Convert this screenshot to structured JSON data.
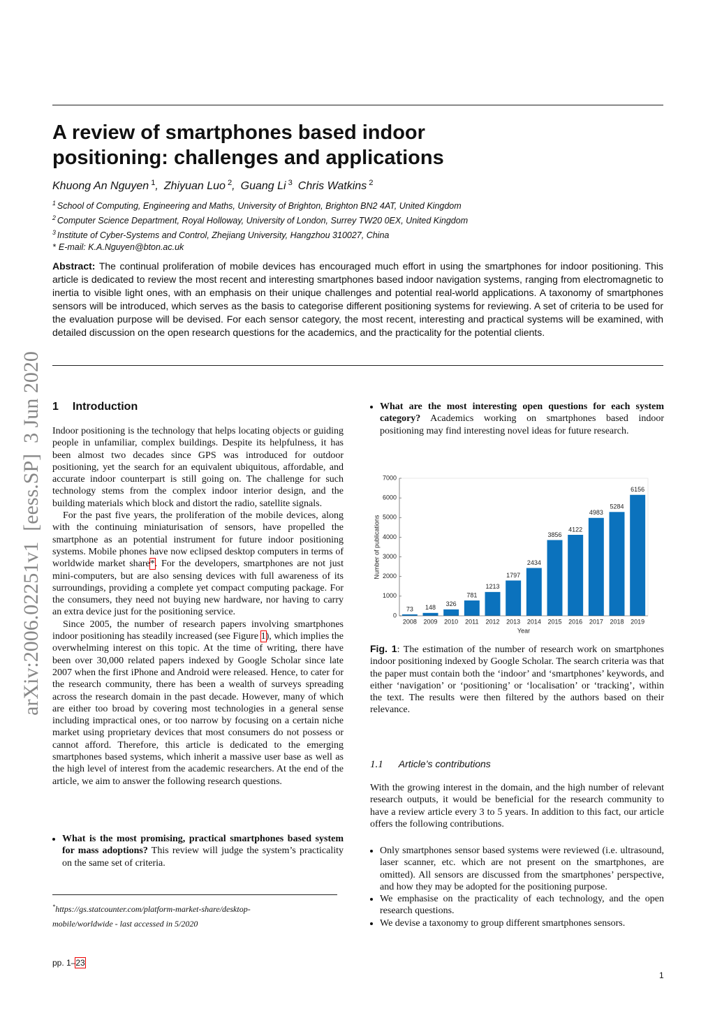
{
  "arxiv_stamp": "arXiv:2006.02251v1  [eess.SP]  3 Jun 2020",
  "header": {
    "title": "A review of smartphones based indoor positioning: challenges and applications",
    "authors": [
      {
        "name": "Khuong An Nguyen",
        "mark": "1",
        "separator": ","
      },
      {
        "name": "Zhiyuan Luo",
        "mark": "2",
        "separator": ","
      },
      {
        "name": "Guang Li",
        "mark": "3"
      },
      {
        "name": "Chris Watkins",
        "mark": "2"
      }
    ],
    "affiliations": [
      {
        "mark": "1",
        "text": "School of Computing, Engineering and Maths, University of Brighton, Brighton BN2 4AT, United Kingdom"
      },
      {
        "mark": "2",
        "text": "Computer Science Department, Royal Holloway, University of London, Surrey TW20 0EX, United Kingdom"
      },
      {
        "mark": "3",
        "text": "Institute of Cyber-Systems and Control, Zhejiang University, Hangzhou 310027, China"
      },
      {
        "mark": "*",
        "text": "E-mail: K.A.Nguyen@bton.ac.uk"
      }
    ]
  },
  "abstract": {
    "label": "Abstract:",
    "text": "The continual proliferation of mobile devices has encouraged much effort in using the smartphones for indoor positioning. This article is dedicated to review the most recent and interesting smartphones based indoor navigation systems, ranging from electromagnetic to inertia to visible light ones, with an emphasis on their unique challenges and potential real-world applications. A taxonomy of smartphones sensors will be introduced, which serves as the basis to categorise different positioning systems for reviewing. A set of criteria to be used for the evaluation purpose will be devised. For each sensor category, the most recent, interesting and practical systems will be examined, with detailed discussion on the open research questions for the academics, and the practicality for the potential clients."
  },
  "section": {
    "number": "1",
    "title": "Introduction",
    "paragraphs": [
      [
        "Indoor positioning is the technology that helps locating objects or guiding people in unfamiliar, complex buildings. Despite its helpfulness, it has been almost two decades since GPS was introduced for outdoor positioning, yet the search for an equivalent ubiquitous, affordable, and accurate indoor counterpart is still going on. The challenge for such technology stems from the complex indoor interior design, and the building materials which block and distort the radio, satellite signals."
      ],
      [
        "For the past five years, the proliferation of the mobile devices, along with the continuing miniaturisation of sensors, have propelled the smartphone as an potential instrument for future indoor positioning systems. Mobile phones have now eclipsed desktop computers in terms of worldwide market share",
        "*",
        ". For the developers, smartphones are not just mini-computers, but are also sensing devices with full awareness of its surroundings, providing a complete yet compact computing package. For the consumers, they need not buying new hardware, nor having to carry an extra device just for the positioning service."
      ],
      [
        "Since 2005, the number of research papers involving smartphones indoor positioning has steadily increased (see Figure ",
        "1",
        "), which implies the overwhelming interest on this topic. At the time of writing, there have been over 30,000 related papers indexed by Google Scholar since late 2007 when the first iPhone and Android were released. Hence, to cater for the research community, there has been a wealth of surveys spreading across the research domain in the past decade. However, many of which are either too broad by covering most technologies in a general sense including impractical ones, or too narrow by focusing on a certain niche market using proprietary devices that most consumers do not possess or cannot afford. Therefore, this article is dedicated to the emerging smartphones based systems, which inherit a massive user base as well as the high level of interest from the academic researchers. At the end of the article, we aim to answer the following research questions."
      ]
    ],
    "questions": [
      {
        "bold": "What is the most promising, practical smartphones based system for mass adoptions?",
        "text": " This review will judge the system’s practicality on the same set of criteria."
      },
      {
        "bold": "What are the most interesting open questions for each system category?",
        "text": " Academics working on smartphones based indoor positioning may find interesting novel ideas for future research."
      }
    ]
  },
  "footnote": {
    "mark": "*",
    "text": "https://gs.statcounter.com/platform-market-share/desktop-mobile/worldwide - last accessed in 5/2020"
  },
  "chart_data": {
    "type": "bar",
    "categories": [
      "2008",
      "2009",
      "2010",
      "2011",
      "2012",
      "2013",
      "2014",
      "2015",
      "2016",
      "2017",
      "2018",
      "2019"
    ],
    "values": [
      73,
      148,
      326,
      781,
      1213,
      1797,
      2434,
      3856,
      4122,
      4983,
      5284,
      6156
    ],
    "color": "#0b72bd",
    "ylim": [
      0,
      7000
    ],
    "yticks": [
      0,
      1000,
      2000,
      3000,
      4000,
      5000,
      6000,
      7000
    ],
    "y_label": "Number of publications",
    "x_label": "Year"
  },
  "caption": {
    "label": "Fig. 1",
    "text": ": The estimation of the number of research work on smartphones indoor positioning indexed by Google Scholar. The search criteria was that the paper must contain both the ‘indoor’ and ‘smartphones’ keywords, and either ‘navigation’ or ‘positioning’ or ‘localisation’ or ‘tracking’, within the text. The results were then filtered by the authors based on their relevance."
  },
  "subsection": {
    "number": "1.1",
    "title": "Article’s contributions",
    "paragraph": "With the growing interest in the domain, and the high number of relevant research outputs, it would be beneficial for the research community to have a review article every 3 to 5 years. In addition to this fact, our article offers the following contributions.",
    "bullets": [
      "Only smartphones sensor based systems were reviewed (i.e. ultrasound, laser scanner, etc. which are not present on the smartphones, are omitted). All sensors are discussed from the smartphones’ perspective, and how they may be adopted for the positioning purpose.",
      "We emphasise on the practicality of each technology, and the open research questions.",
      "We devise a taxonomy to group different smartphones sensors."
    ]
  },
  "footer": {
    "pages_prefix": "pp. 1–",
    "pages_last": "23",
    "page_number": "1"
  }
}
